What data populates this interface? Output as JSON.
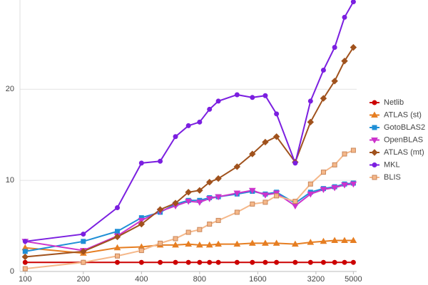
{
  "chart_data": {
    "type": "line",
    "x": [
      100,
      200,
      300,
      400,
      500,
      600,
      700,
      800,
      900,
      1000,
      1250,
      1500,
      1750,
      2000,
      2500,
      3000,
      3500,
      4000,
      4500,
      5000
    ],
    "log_x": true,
    "xlim": [
      94,
      5200
    ],
    "xticks": [
      100,
      200,
      400,
      800,
      1600,
      3200,
      5000
    ],
    "ylim": [
      0,
      29.8
    ],
    "yticks": [
      0,
      10,
      20
    ],
    "grid": true,
    "legend": "right",
    "series": [
      {
        "name": "Netlib",
        "color": "#cc0000",
        "marker": "circle",
        "values": [
          1.0,
          1.0,
          1.0,
          1.0,
          1.0,
          1.0,
          1.0,
          1.0,
          1.0,
          1.0,
          1.0,
          1.0,
          1.0,
          1.0,
          1.0,
          1.0,
          1.0,
          1.0,
          1.0,
          1.0
        ]
      },
      {
        "name": "ATLAS (st)",
        "color": "#e67e22",
        "marker": "triangle-up",
        "values": [
          2.6,
          2.0,
          2.6,
          2.7,
          2.9,
          2.9,
          3.0,
          2.9,
          2.9,
          3.0,
          3.0,
          3.1,
          3.1,
          3.1,
          3.0,
          3.2,
          3.3,
          3.4,
          3.4,
          3.4
        ]
      },
      {
        "name": "GotoBLAS2",
        "color": "#1f8fd6",
        "marker": "square",
        "values": [
          2.2,
          3.3,
          4.4,
          5.9,
          6.5,
          7.4,
          7.8,
          7.8,
          8.1,
          8.2,
          8.5,
          8.8,
          8.5,
          8.7,
          7.5,
          8.7,
          9.1,
          9.3,
          9.6,
          9.7
        ]
      },
      {
        "name": "OpenBLAS",
        "color": "#cc33cc",
        "marker": "triangle-down",
        "values": [
          3.3,
          2.3,
          3.9,
          5.6,
          6.6,
          7.2,
          7.7,
          7.6,
          8.0,
          8.2,
          8.6,
          8.9,
          8.4,
          8.6,
          7.2,
          8.5,
          9.0,
          9.2,
          9.5,
          9.6
        ]
      },
      {
        "name": "ATLAS (mt)",
        "color": "#a0521d",
        "marker": "diamond",
        "values": [
          1.6,
          2.2,
          3.8,
          5.2,
          6.8,
          7.5,
          8.7,
          8.9,
          9.8,
          10.2,
          11.5,
          12.9,
          14.2,
          14.8,
          12.0,
          16.4,
          19.0,
          20.9,
          23.1,
          24.6
        ]
      },
      {
        "name": "MKL",
        "color": "#7b1fe0",
        "marker": "circle",
        "values": [
          3.3,
          4.1,
          7.0,
          11.9,
          12.1,
          14.8,
          16.0,
          16.4,
          17.8,
          18.7,
          19.4,
          19.1,
          19.3,
          17.3,
          11.9,
          18.7,
          22.1,
          24.6,
          27.9,
          29.6
        ]
      },
      {
        "name": "BLIS",
        "color": "#f5b88a",
        "marker": "square",
        "values": [
          0.3,
          1.0,
          1.7,
          2.3,
          3.1,
          3.6,
          4.3,
          4.6,
          5.2,
          5.6,
          6.5,
          7.4,
          7.6,
          8.3,
          7.7,
          9.6,
          10.9,
          11.7,
          12.9,
          13.3
        ]
      }
    ]
  }
}
